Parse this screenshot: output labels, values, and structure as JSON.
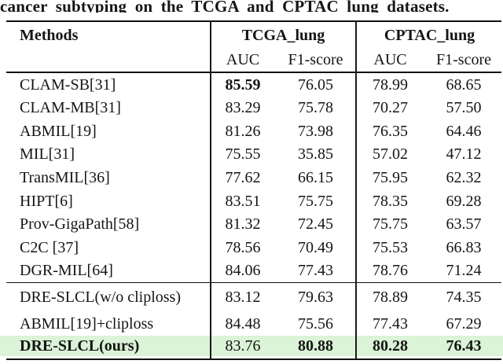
{
  "page": {
    "background": "#ffffff",
    "ink_color": "#151515",
    "rule_color": "#111111"
  },
  "caption": "cancer subtyping on the TCGA and CPTAC lung datasets.",
  "table": {
    "methods_header": "Methods",
    "group_headers": [
      {
        "label": "TCGA_lung"
      },
      {
        "label": "CPTAC_lung"
      }
    ],
    "sub_headers": [
      "AUC",
      "F1-score",
      "AUC",
      "F1-score"
    ],
    "highlight_color": "#dbf3d6",
    "sections": [
      {
        "rows": [
          {
            "method": "CLAM-SB[31]",
            "method_bold": false,
            "values": [
              "85.59",
              "76.05",
              "78.99",
              "68.65"
            ],
            "bold": [
              true,
              false,
              false,
              false
            ],
            "highlight": false
          },
          {
            "method": "CLAM-MB[31]",
            "method_bold": false,
            "values": [
              "83.29",
              "75.78",
              "70.27",
              "57.50"
            ],
            "bold": [
              false,
              false,
              false,
              false
            ],
            "highlight": false
          },
          {
            "method": "ABMIL[19]",
            "method_bold": false,
            "values": [
              "81.26",
              "73.98",
              "76.35",
              "64.46"
            ],
            "bold": [
              false,
              false,
              false,
              false
            ],
            "highlight": false
          },
          {
            "method": "MIL[31]",
            "method_bold": false,
            "values": [
              "75.55",
              "35.85",
              "57.02",
              "47.12"
            ],
            "bold": [
              false,
              false,
              false,
              false
            ],
            "highlight": false
          },
          {
            "method": "TransMIL[36]",
            "method_bold": false,
            "values": [
              "77.62",
              "66.15",
              "75.95",
              "62.32"
            ],
            "bold": [
              false,
              false,
              false,
              false
            ],
            "highlight": false
          },
          {
            "method": "HIPT[6]",
            "method_bold": false,
            "values": [
              "83.51",
              "75.75",
              "78.35",
              "69.28"
            ],
            "bold": [
              false,
              false,
              false,
              false
            ],
            "highlight": false
          },
          {
            "method": "Prov-GigaPath[58]",
            "method_bold": false,
            "values": [
              "81.32",
              "72.45",
              "75.75",
              "63.57"
            ],
            "bold": [
              false,
              false,
              false,
              false
            ],
            "highlight": false
          },
          {
            "method": "C2C [37]",
            "method_bold": false,
            "values": [
              "78.56",
              "70.49",
              "75.53",
              "66.83"
            ],
            "bold": [
              false,
              false,
              false,
              false
            ],
            "highlight": false
          },
          {
            "method": "DGR-MIL[64]",
            "method_bold": false,
            "values": [
              "84.06",
              "77.43",
              "78.76",
              "71.24"
            ],
            "bold": [
              false,
              false,
              false,
              false
            ],
            "highlight": false
          }
        ]
      },
      {
        "rows": [
          {
            "method": "DRE-SLCL(w/o cliploss)",
            "method_bold": false,
            "values": [
              "83.12",
              "79.63",
              "78.89",
              "74.35"
            ],
            "bold": [
              false,
              false,
              false,
              false
            ],
            "highlight": false
          },
          {
            "method": "ABMIL[19]+cliploss",
            "method_bold": false,
            "values": [
              "84.48",
              "75.56",
              "77.43",
              "67.29"
            ],
            "bold": [
              false,
              false,
              false,
              false
            ],
            "highlight": false
          },
          {
            "method": "DRE-SLCL(ours)",
            "method_bold": true,
            "values": [
              "83.76",
              "80.88",
              "80.28",
              "76.43"
            ],
            "bold": [
              false,
              true,
              true,
              true
            ],
            "highlight": true
          }
        ]
      }
    ]
  }
}
